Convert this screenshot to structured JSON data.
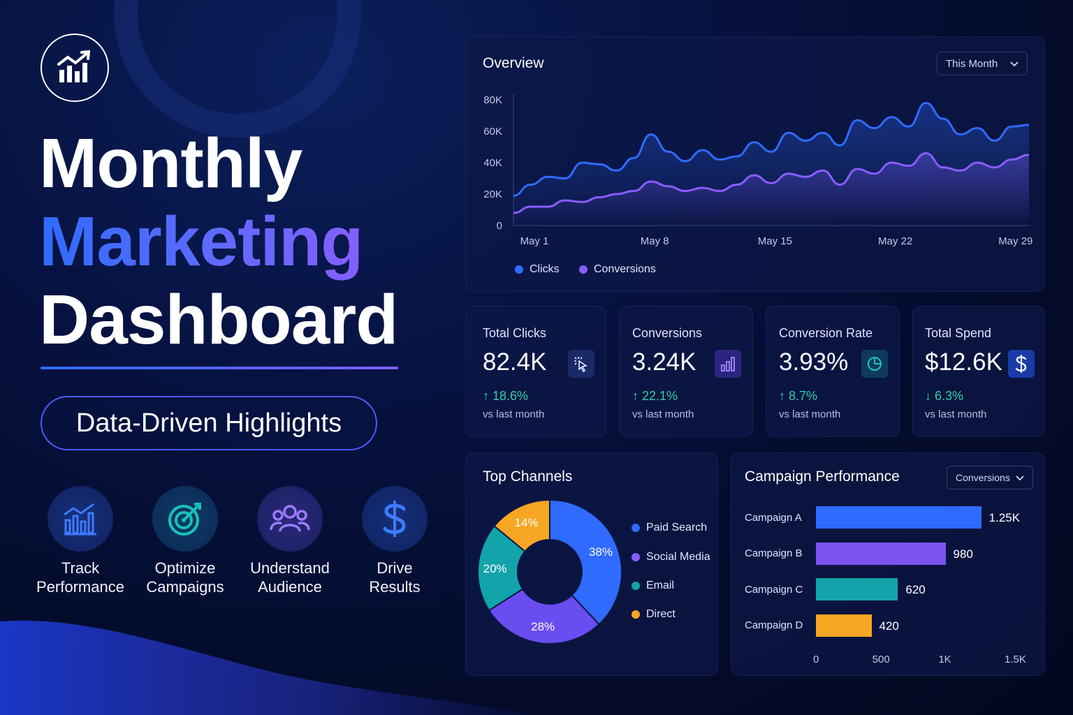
{
  "hero": {
    "title_line1": "Monthly",
    "title_line2": "Marketing",
    "title_line3": "Dashboard",
    "pill": "Data-Driven Highlights",
    "features": [
      {
        "icon": "trend-chart-icon",
        "label_line1": "Track",
        "label_line2": "Performance"
      },
      {
        "icon": "target-icon",
        "label_line1": "Optimize",
        "label_line2": "Campaigns"
      },
      {
        "icon": "users-icon",
        "label_line1": "Understand",
        "label_line2": "Audience"
      },
      {
        "icon": "dollar-icon",
        "label_line1": "Drive",
        "label_line2": "Results"
      }
    ]
  },
  "overview": {
    "title": "Overview",
    "dropdown": "This Month",
    "y_ticks": [
      "80K",
      "60K",
      "40K",
      "20K",
      "0"
    ],
    "x_ticks": [
      "May 1",
      "May 8",
      "May 15",
      "May 22",
      "May 29"
    ],
    "legend": [
      "Clicks",
      "Conversions"
    ]
  },
  "kpis": [
    {
      "label": "Total Clicks",
      "value": "82.4K",
      "change": "↑ 18.6%",
      "sub": "vs last month",
      "icon": "cursor-click-icon"
    },
    {
      "label": "Conversions",
      "value": "3.24K",
      "change": "↑ 22.1%",
      "sub": "vs last month",
      "icon": "bar-chart-icon"
    },
    {
      "label": "Conversion Rate",
      "value": "3.93%",
      "change": "↑ 8.7%",
      "sub": "vs last month",
      "icon": "pie-chart-icon"
    },
    {
      "label": "Total Spend",
      "value": "$12.6K",
      "change": "↓ 6.3%",
      "sub": "vs last month",
      "icon": "dollar-icon"
    }
  ],
  "channels": {
    "title": "Top Channels",
    "slice_labels": [
      "38%",
      "28%",
      "20%",
      "14%"
    ],
    "legend": [
      "Paid Search",
      "Social Media",
      "Email",
      "Direct"
    ]
  },
  "campaigns": {
    "title": "Campaign Performance",
    "dropdown": "Conversions",
    "labels": [
      "Campaign A",
      "Campaign B",
      "Campaign C",
      "Campaign D"
    ],
    "value_labels": [
      "1.25K",
      "980",
      "620",
      "420"
    ],
    "x_ticks": [
      "0",
      "500",
      "1K",
      "1.5K"
    ]
  },
  "colors": {
    "clicks": "#2f6bff",
    "conversions": "#8a5cff",
    "teal": "#12a3ab",
    "orange": "#f6a623"
  },
  "chart_data": [
    {
      "type": "line",
      "title": "Overview",
      "x": [
        "May 1",
        "May 2",
        "May 3",
        "May 4",
        "May 5",
        "May 6",
        "May 7",
        "May 8",
        "May 9",
        "May 10",
        "May 11",
        "May 12",
        "May 13",
        "May 14",
        "May 15",
        "May 16",
        "May 17",
        "May 18",
        "May 19",
        "May 20",
        "May 21",
        "May 22",
        "May 23",
        "May 24",
        "May 25",
        "May 26",
        "May 27",
        "May 28",
        "May 29",
        "May 30",
        "May 31"
      ],
      "series": [
        {
          "name": "Clicks",
          "values": [
            19,
            26,
            31,
            30,
            40,
            39,
            35,
            43,
            58,
            47,
            41,
            48,
            42,
            44,
            53,
            47,
            59,
            54,
            59,
            51,
            67,
            62,
            69,
            63,
            78,
            68,
            58,
            62,
            54,
            63,
            64
          ]
        },
        {
          "name": "Conversions",
          "values": [
            8,
            12,
            12,
            16,
            15,
            18,
            20,
            22,
            28,
            25,
            22,
            24,
            22,
            26,
            32,
            27,
            33,
            31,
            35,
            26,
            36,
            33,
            40,
            38,
            46,
            37,
            35,
            40,
            37,
            42,
            45
          ]
        }
      ],
      "ylim": [
        0,
        80000
      ],
      "y_unit": "K",
      "legend": "bottom-left",
      "grid": false
    },
    {
      "type": "pie",
      "title": "Top Channels",
      "categories": [
        "Paid Search",
        "Social Media",
        "Email",
        "Direct"
      ],
      "values": [
        38,
        28,
        20,
        14
      ],
      "donut": true,
      "legend": "right"
    },
    {
      "type": "bar",
      "orientation": "horizontal",
      "title": "Campaign Performance",
      "categories": [
        "Campaign A",
        "Campaign B",
        "Campaign C",
        "Campaign D"
      ],
      "values": [
        1250,
        980,
        620,
        420
      ],
      "xlim": [
        0,
        1500
      ],
      "grid": false
    }
  ]
}
